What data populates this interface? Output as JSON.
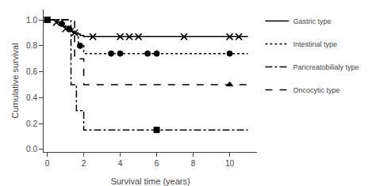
{
  "chart_data": {
    "type": "step",
    "xlabel": "Survival time (years)",
    "ylabel": "Cumulative survival",
    "xlim": [
      -0.2,
      11.5
    ],
    "ylim": [
      -0.02,
      1.08
    ],
    "xticks": [
      0,
      2,
      4,
      6,
      8,
      10
    ],
    "yticks": [
      {
        "value": 0.0,
        "label": "0.0"
      },
      0.2,
      0.4,
      0.6,
      0.8,
      {
        "value": 1.0,
        "label": "1.0"
      }
    ],
    "grid": false,
    "legend": "upper right",
    "series": [
      {
        "name": "Gastric type",
        "color": "#000000",
        "marker": "x",
        "line_style": "solid",
        "x": [
          0,
          0.3,
          0.5,
          0.7,
          0.9,
          1.0,
          1.1,
          1.2,
          1.4,
          1.6,
          1.8,
          2.0,
          2.2,
          11.0
        ],
        "values": [
          1.0,
          1.0,
          0.98,
          0.97,
          0.95,
          0.93,
          0.92,
          0.91,
          0.9,
          0.89,
          0.88,
          0.87,
          0.87,
          0.87
        ],
        "marker_x": [
          0,
          0.5,
          1.0,
          1.5,
          2.5,
          4.0,
          4.5,
          5.0,
          7.5,
          10.0,
          10.5
        ],
        "marker_values": [
          1.0,
          0.98,
          0.93,
          0.9,
          0.87,
          0.87,
          0.87,
          0.87,
          0.87,
          0.87,
          0.87
        ]
      },
      {
        "name": "Intestinal type",
        "color": "#000000",
        "marker": "circle",
        "line_style": "dotted",
        "x": [
          0,
          0.5,
          0.8,
          1.0,
          1.2,
          1.5,
          1.7,
          2.0,
          2.3,
          11.0
        ],
        "values": [
          1.0,
          1.0,
          0.97,
          0.95,
          0.93,
          0.9,
          0.8,
          0.74,
          0.74,
          0.74
        ],
        "marker_x": [
          0,
          0.8,
          1.2,
          1.8,
          3.5,
          4.0,
          5.5,
          6.0,
          10.0
        ],
        "marker_values": [
          1.0,
          0.97,
          0.93,
          0.8,
          0.74,
          0.74,
          0.74,
          0.74,
          0.74
        ]
      },
      {
        "name": "Pancreatobilialy type",
        "color": "#000000",
        "marker": "square",
        "line_style": "dashdot",
        "x": [
          0,
          1.0,
          1.3,
          1.6,
          2.0,
          2.5,
          11.0
        ],
        "values": [
          1.0,
          1.0,
          0.5,
          0.3,
          0.15,
          0.15,
          0.15
        ],
        "marker_x": [
          0,
          6.0
        ],
        "marker_values": [
          1.0,
          0.15
        ]
      },
      {
        "name": "Oncocytic type",
        "color": "#000000",
        "marker": "triangle",
        "line_style": "dashed",
        "x": [
          0,
          1.2,
          1.5,
          2.0,
          2.3,
          11.0
        ],
        "values": [
          1.0,
          1.0,
          0.7,
          0.5,
          0.5,
          0.5
        ],
        "marker_x": [
          0,
          10.0
        ],
        "marker_values": [
          1.0,
          0.5
        ]
      }
    ]
  }
}
